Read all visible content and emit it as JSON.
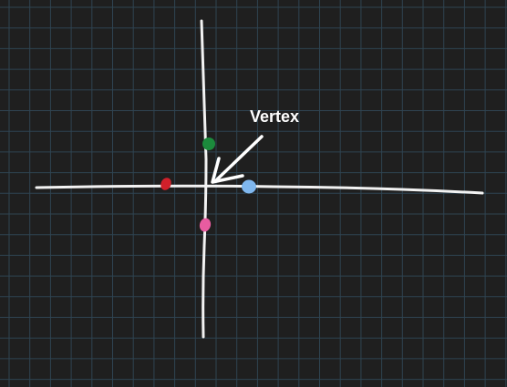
{
  "background_color": "#1f1f1f",
  "grid_color": "#2f4452",
  "axis_color": "#f2f2f2",
  "annotation": {
    "text": "Vertex",
    "color": "#ffffff"
  },
  "points": [
    {
      "name": "green-dot",
      "color": "#1c8a3c"
    },
    {
      "name": "red-dot",
      "color": "#d0202a"
    },
    {
      "name": "blue-dot",
      "color": "#7fb7ef"
    },
    {
      "name": "pink-dot",
      "color": "#e85ca0"
    }
  ]
}
